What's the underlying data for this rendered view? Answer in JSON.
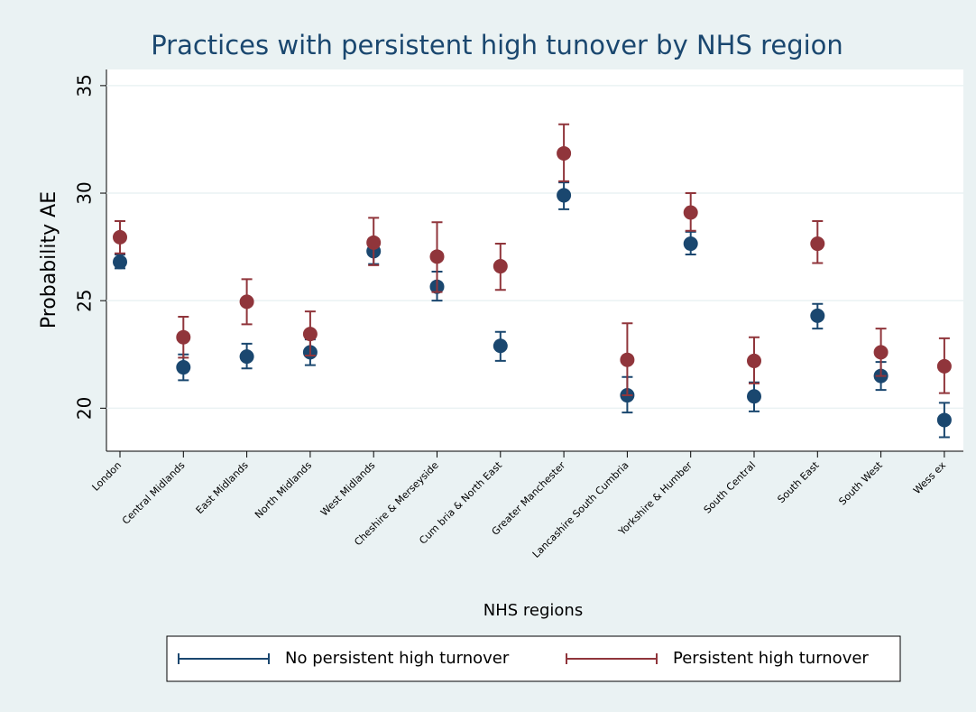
{
  "chart_data": {
    "type": "errorbar",
    "title": "Practices with persistent high tunover by NHS region",
    "x_label": "NHS regions",
    "y_label": "Probability AE",
    "categories": [
      "London",
      "Central Midlands",
      "East Midlands",
      "North Midlands",
      "West Midlands",
      "Cheshire & Merseyside",
      "Cum bria & North East",
      "Greater Manchester",
      "Lancashire South Cumbria",
      "Yorkshire & Humber",
      "South Central",
      "South East",
      "South West",
      "Wess ex"
    ],
    "ylim": [
      18,
      35.75
    ],
    "yticks": [
      20,
      25,
      30,
      35
    ],
    "grid": true,
    "legend": "bottom",
    "series": [
      {
        "name": "No persistent high turnover",
        "color": "#1a476f",
        "values": [
          26.8,
          21.9,
          22.4,
          22.6,
          27.3,
          25.65,
          22.9,
          29.9,
          20.6,
          27.65,
          20.55,
          24.3,
          21.5,
          19.45
        ],
        "ci_low": [
          26.5,
          21.3,
          21.85,
          22.0,
          26.7,
          25.0,
          22.2,
          29.25,
          19.8,
          27.15,
          19.85,
          23.7,
          20.85,
          18.65
        ],
        "ci_high": [
          27.15,
          22.5,
          23.0,
          23.2,
          27.8,
          26.35,
          23.55,
          30.5,
          21.45,
          28.2,
          21.2,
          24.85,
          22.15,
          20.25
        ]
      },
      {
        "name": "Persistent high turnover",
        "color": "#90353b",
        "values": [
          27.95,
          23.3,
          24.95,
          23.45,
          27.7,
          27.05,
          26.6,
          31.85,
          22.25,
          29.1,
          22.2,
          27.65,
          22.6,
          21.95
        ],
        "ci_low": [
          27.2,
          22.35,
          23.9,
          22.45,
          26.65,
          25.4,
          25.5,
          30.55,
          20.6,
          28.25,
          21.15,
          26.75,
          21.5,
          20.7
        ],
        "ci_high": [
          28.7,
          24.25,
          26.0,
          24.5,
          28.85,
          28.65,
          27.65,
          33.2,
          23.95,
          30.0,
          23.3,
          28.7,
          23.7,
          23.25
        ]
      }
    ]
  }
}
